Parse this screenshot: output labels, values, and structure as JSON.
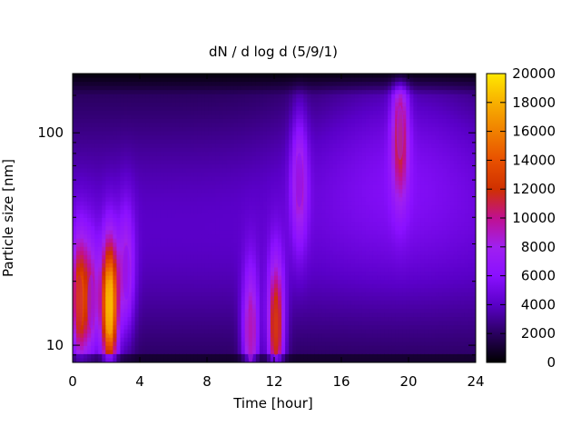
{
  "chart_data": {
    "type": "heatmap",
    "title": "dN / d log d (5/9/1)",
    "xlabel": "Time [hour]",
    "ylabel": "Particle size [nm]",
    "x_ticks": [
      "0",
      "4",
      "8",
      "12",
      "16",
      "20",
      "24"
    ],
    "x_tick_values": [
      0,
      4,
      8,
      12,
      16,
      20,
      24
    ],
    "xlim": [
      0,
      24
    ],
    "y_scale": "log",
    "ylim": [
      8.3,
      190
    ],
    "y_ticks": [
      "10",
      "100"
    ],
    "y_tick_values": [
      10,
      100
    ],
    "colorbar": {
      "range": [
        0,
        20000
      ],
      "ticks": [
        "0",
        "2000",
        "4000",
        "6000",
        "8000",
        "10000",
        "12000",
        "14000",
        "16000",
        "18000",
        "20000"
      ],
      "tick_values": [
        0,
        2000,
        4000,
        6000,
        8000,
        10000,
        12000,
        14000,
        16000,
        18000,
        20000
      ],
      "colormap": [
        "#000000",
        "#2a0060",
        "#5a00c8",
        "#8a10ff",
        "#a020f0",
        "#c01090",
        "#d03000",
        "#e85000",
        "#f08000",
        "#f8b000",
        "#ffe800"
      ]
    },
    "features": [
      {
        "hour": 0.4,
        "size_nm": 16,
        "level": 11000
      },
      {
        "hour": 1.1,
        "size_nm": 16,
        "level": 7000
      },
      {
        "hour": 2.2,
        "size_nm": 15,
        "level": 17500
      },
      {
        "hour": 3.2,
        "size_nm": 22,
        "level": 6000
      },
      {
        "hour": 10.6,
        "size_nm": 11,
        "level": 8500
      },
      {
        "hour": 12.1,
        "size_nm": 12,
        "level": 11500
      },
      {
        "hour": 13.5,
        "size_nm": 60,
        "level": 6000
      },
      {
        "hour": 19.5,
        "size_nm": 100,
        "level": 7800
      }
    ]
  }
}
